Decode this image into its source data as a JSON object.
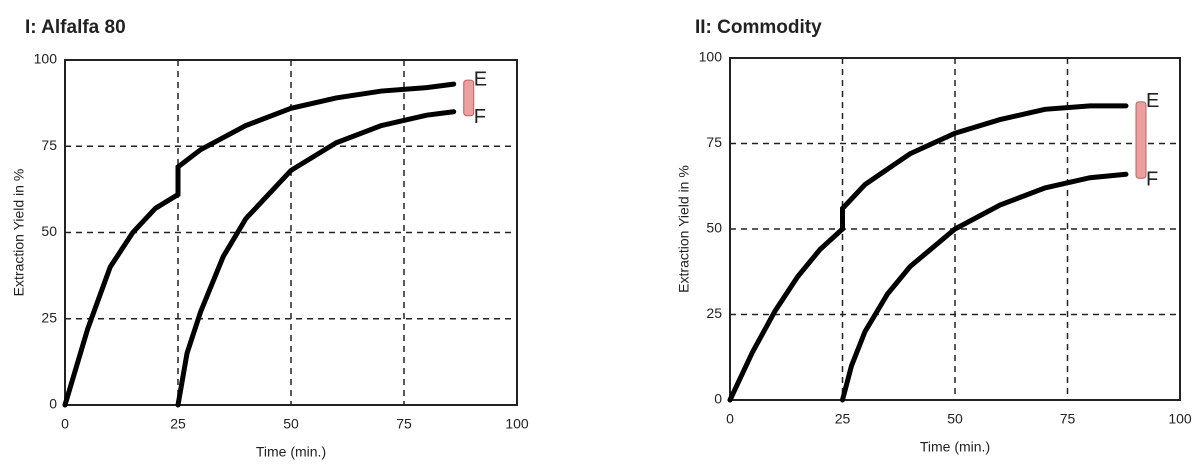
{
  "chart_data": [
    {
      "type": "line",
      "title": "I: Alfalfa 80",
      "xlabel": "Time (min.)",
      "ylabel": "Extraction Yield in %",
      "xlim": [
        0,
        100
      ],
      "ylim": [
        0,
        100
      ],
      "xticks": [
        0,
        25,
        50,
        75,
        100
      ],
      "yticks": [
        0,
        25,
        50,
        75,
        100
      ],
      "grid": true,
      "series": [
        {
          "name": "E",
          "color": "#000000",
          "x": [
            0,
            5,
            10,
            15,
            20,
            25,
            25,
            30,
            40,
            50,
            60,
            70,
            80,
            86
          ],
          "values": [
            0,
            22,
            40,
            50,
            57,
            61,
            69,
            74,
            81,
            86,
            89,
            91,
            92,
            93
          ]
        },
        {
          "name": "F",
          "color": "#000000",
          "x": [
            25,
            27,
            30,
            35,
            40,
            50,
            60,
            70,
            80,
            86
          ],
          "values": [
            0,
            15,
            27,
            43,
            54,
            68,
            76,
            81,
            84,
            85
          ]
        }
      ]
    },
    {
      "type": "line",
      "title": "II: Commodity",
      "xlabel": "Time (min.)",
      "ylabel": "Extraction Yield in %",
      "xlim": [
        0,
        100
      ],
      "ylim": [
        0,
        100
      ],
      "xticks": [
        0,
        25,
        50,
        75,
        100
      ],
      "yticks": [
        0,
        25,
        50,
        75,
        100
      ],
      "grid": true,
      "series": [
        {
          "name": "E",
          "color": "#000000",
          "x": [
            0,
            5,
            10,
            15,
            20,
            25,
            25,
            30,
            40,
            50,
            60,
            70,
            80,
            88
          ],
          "values": [
            0,
            14,
            26,
            36,
            44,
            50,
            56,
            63,
            72,
            78,
            82,
            85,
            86,
            86
          ]
        },
        {
          "name": "F",
          "color": "#000000",
          "x": [
            25,
            27,
            30,
            35,
            40,
            50,
            60,
            70,
            80,
            88
          ],
          "values": [
            0,
            10,
            20,
            31,
            39,
            50,
            57,
            62,
            65,
            66
          ]
        }
      ]
    }
  ]
}
